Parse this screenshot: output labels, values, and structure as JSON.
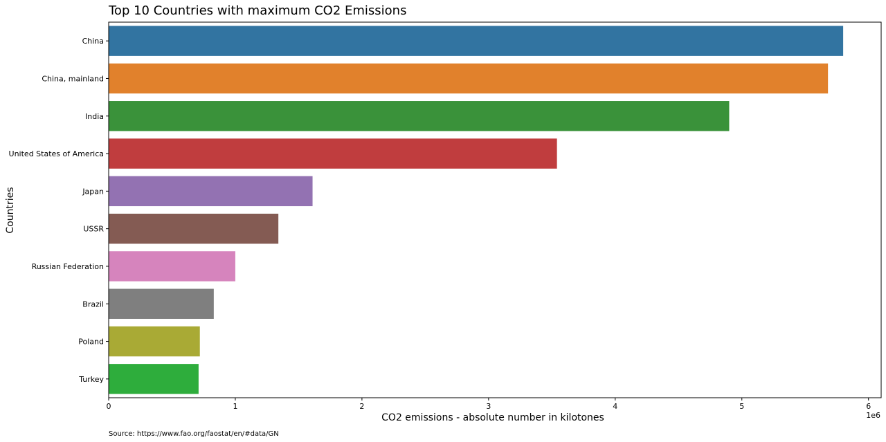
{
  "chart_data": {
    "type": "bar",
    "orientation": "horizontal",
    "title": "Top 10 Countries with maximum CO2 Emissions",
    "xlabel": "CO2 emissions - absolute number in kilotones",
    "ylabel": "Countries",
    "x_offset_label": "1e6",
    "xlim": [
      0,
      6.1
    ],
    "xticks": [
      "0",
      "1",
      "2",
      "3",
      "4",
      "5",
      "6"
    ],
    "categories": [
      "China",
      "China, mainland",
      "India",
      "United States of America",
      "Japan",
      "USSR",
      "Russian Federation",
      "Brazil",
      "Poland",
      "Turkey"
    ],
    "values": [
      5.8,
      5.68,
      4.9,
      3.54,
      1.61,
      1.34,
      1.0,
      0.83,
      0.72,
      0.71
    ],
    "colors": [
      "#3274a1",
      "#e1812c",
      "#3a923a",
      "#c03d3e",
      "#9372b2",
      "#845b53",
      "#d684bd",
      "#7f7f7f",
      "#a9aa35",
      "#2ead3c"
    ],
    "grid": false,
    "legend": "none",
    "source": "Source: https://www.fao.org/faostat/en/#data/GN"
  }
}
